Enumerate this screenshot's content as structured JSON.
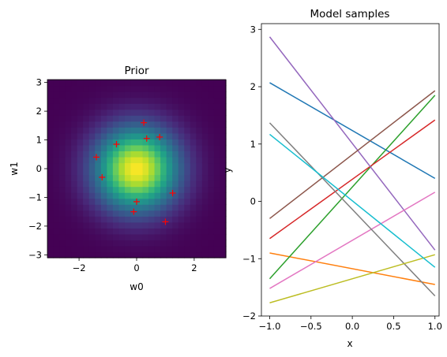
{
  "chart_data": [
    {
      "type": "heatmap",
      "title": "Prior",
      "xlabel": "w0",
      "ylabel": "w1",
      "xlim": [
        -3.1,
        3.1
      ],
      "ylim": [
        -3.1,
        3.1
      ],
      "xticks": [
        -2,
        0,
        2
      ],
      "xtick_labels": [
        "−2",
        "0",
        "2"
      ],
      "yticks": [
        -3,
        -2,
        -1,
        0,
        1,
        2,
        3
      ],
      "ytick_labels": [
        "−3",
        "−2",
        "−1",
        "0",
        "1",
        "2",
        "3"
      ],
      "grid": false,
      "colormap": "viridis",
      "density": "standard bivariate normal",
      "markers": {
        "symbol": "+",
        "color": "#ff0000",
        "points": [
          [
            -1.4,
            0.4
          ],
          [
            -1.2,
            -0.3
          ],
          [
            -0.7,
            0.85
          ],
          [
            0.25,
            1.6
          ],
          [
            0.35,
            1.05
          ],
          [
            0.8,
            1.1
          ],
          [
            1.25,
            -0.85
          ],
          [
            0.0,
            -1.15
          ],
          [
            -0.1,
            -1.5
          ],
          [
            1.0,
            -1.85
          ]
        ]
      }
    },
    {
      "type": "line",
      "title": "Model samples",
      "xlabel": "x",
      "ylabel": "y",
      "xlim": [
        -1.1,
        1.05
      ],
      "ylim": [
        -2.0,
        3.1
      ],
      "xticks": [
        -1.0,
        -0.5,
        0.0,
        0.5,
        1.0
      ],
      "xtick_labels": [
        "−1.0",
        "−0.5",
        "0.0",
        "0.5",
        "1.0"
      ],
      "yticks": [
        -2,
        -1,
        0,
        1,
        2,
        3
      ],
      "ytick_labels": [
        "−2",
        "−1",
        "0",
        "1",
        "2",
        "3"
      ],
      "grid": false,
      "x": [
        -1.0,
        1.0
      ],
      "series": [
        {
          "values": [
            2.07,
            0.4
          ],
          "color": "#1f77b4"
        },
        {
          "values": [
            -0.9,
            -1.45
          ],
          "color": "#ff7f0e"
        },
        {
          "values": [
            -1.35,
            1.85
          ],
          "color": "#2ca02c"
        },
        {
          "values": [
            -0.65,
            1.42
          ],
          "color": "#d62728"
        },
        {
          "values": [
            2.87,
            -0.85
          ],
          "color": "#9467bd"
        },
        {
          "values": [
            -0.3,
            1.93
          ],
          "color": "#8c564b"
        },
        {
          "values": [
            -1.52,
            0.16
          ],
          "color": "#e377c2"
        },
        {
          "values": [
            1.37,
            -1.65
          ],
          "color": "#7f7f7f"
        },
        {
          "values": [
            -1.77,
            -0.93
          ],
          "color": "#bcbd22"
        },
        {
          "values": [
            1.17,
            -1.15
          ],
          "color": "#17becf"
        }
      ]
    }
  ]
}
